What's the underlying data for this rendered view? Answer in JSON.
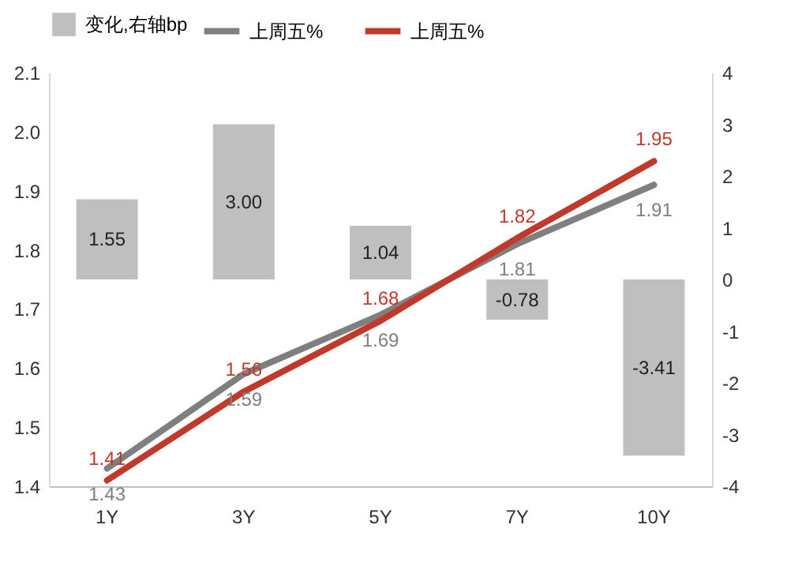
{
  "chart_data": {
    "type": "line",
    "categories": [
      "1Y",
      "3Y",
      "5Y",
      "7Y",
      "10Y"
    ],
    "series": [
      {
        "name": "变化,右轴bp",
        "type": "bar",
        "axis": "y2",
        "color": "#bfbfbf",
        "values": [
          1.55,
          3.0,
          1.04,
          -0.78,
          -3.41
        ],
        "value_labels": [
          "1.55",
          "3.00",
          "1.04",
          "-0.78",
          "-3.41"
        ]
      },
      {
        "name": "上周五%",
        "type": "line",
        "color": "#7f7f7f",
        "values": [
          1.43,
          1.59,
          1.69,
          1.81,
          1.91
        ]
      },
      {
        "name": "上周五%",
        "type": "line",
        "color": "#c0392b",
        "values": [
          1.41,
          1.56,
          1.68,
          1.82,
          1.95
        ]
      }
    ],
    "ylim": [
      1.4,
      2.1
    ],
    "yticks": [
      1.4,
      1.5,
      1.6,
      1.7,
      1.8,
      1.9,
      {
        "value": 2,
        "label": "2.0"
      },
      2.1
    ],
    "y2lim": [
      -4,
      4
    ],
    "y2ticks": [
      -4,
      -3,
      -2,
      -1,
      0,
      1,
      2,
      3,
      4
    ],
    "data_labels": true,
    "legend": "top",
    "grid": false
  }
}
